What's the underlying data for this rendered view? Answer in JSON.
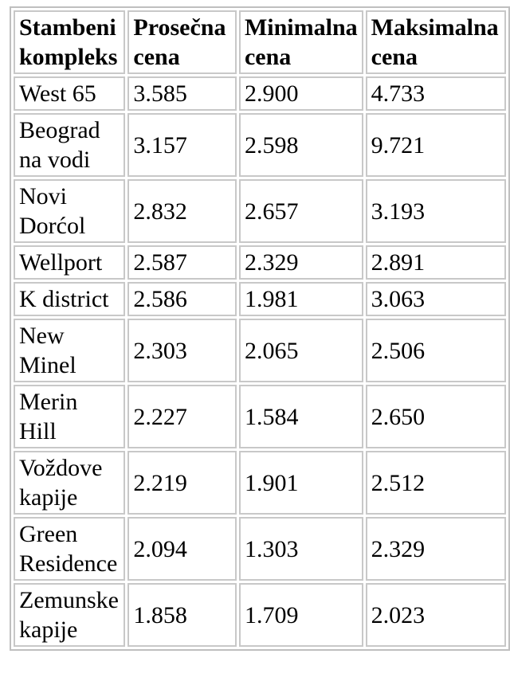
{
  "colors": {
    "background": "#ffffff",
    "table_border": "#bfbfbf",
    "cell_border": "#c8c8c8",
    "text": "#000000"
  },
  "chart_data": {
    "type": "table",
    "title": "",
    "columns": [
      {
        "label": "Stambeni kompleks",
        "wrapped": "Stambeni\nkompleks"
      },
      {
        "label": "Prosečna cena",
        "wrapped": "Prosečna\ncena"
      },
      {
        "label": "Minimalna cena",
        "wrapped": "Minimalna\ncena"
      },
      {
        "label": "Maksimalna cena",
        "wrapped": "Maksimalna\ncena"
      }
    ],
    "rows": [
      {
        "name": "West 65",
        "name_wrapped": "West 65",
        "values": [
          "3.585",
          "2.900",
          "4.733"
        ]
      },
      {
        "name": "Beograd na vodi",
        "name_wrapped": "Beograd\nna vodi",
        "values": [
          "3.157",
          "2.598",
          "9.721"
        ]
      },
      {
        "name": "Novi Dorćol",
        "name_wrapped": "Novi\nDorćol",
        "values": [
          "2.832",
          "2.657",
          "3.193"
        ]
      },
      {
        "name": "Wellport",
        "name_wrapped": "Wellport",
        "values": [
          "2.587",
          "2.329",
          "2.891"
        ]
      },
      {
        "name": "K district",
        "name_wrapped": "K district",
        "values": [
          "2.586",
          "1.981",
          "3.063"
        ]
      },
      {
        "name": "New Minel",
        "name_wrapped": "New\nMinel",
        "values": [
          "2.303",
          "2.065",
          "2.506"
        ]
      },
      {
        "name": "Merin Hill",
        "name_wrapped": "Merin\nHill",
        "values": [
          "2.227",
          "1.584",
          "2.650"
        ]
      },
      {
        "name": "Voždove kapije",
        "name_wrapped": "Voždove\nkapije",
        "values": [
          "2.219",
          "1.901",
          "2.512"
        ]
      },
      {
        "name": "Green Residence",
        "name_wrapped": "Green\nResidence",
        "values": [
          "2.094",
          "1.303",
          "2.329"
        ]
      },
      {
        "name": "Zemunske kapije",
        "name_wrapped": "Zemunske\nkapije",
        "values": [
          "1.858",
          "1.709",
          "2.023"
        ]
      }
    ]
  }
}
